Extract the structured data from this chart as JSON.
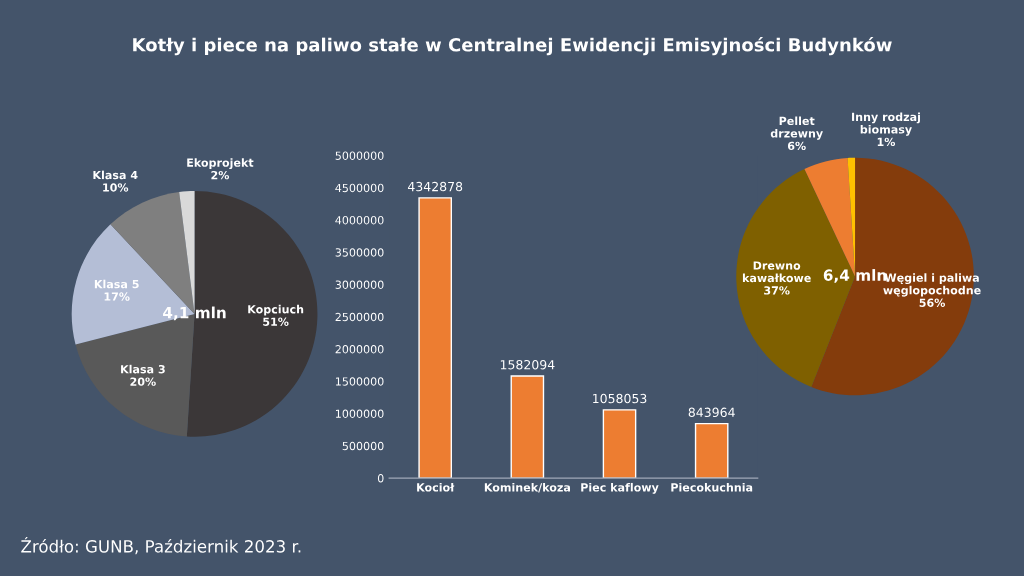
{
  "chart_data": [
    {
      "type": "pie",
      "title": "Kotły i piece na paliwo stałe w Centralnej Ewidencji Emisyjności Budynków",
      "categories": [
        "Kopciuch",
        "Klasa 3",
        "Klasa 5",
        "Klasa 4",
        "Ekoprojekt"
      ],
      "values": [
        51,
        20,
        17,
        10,
        2
      ],
      "value_labels": [
        "51%",
        "20%",
        "17%",
        "10%",
        "2%"
      ],
      "colors": [
        "#3b3738",
        "#595959",
        "#b4bed6",
        "#7f7f7f",
        "#d9d9d9"
      ],
      "annotations": [
        "4,1 mln",
        "Źródło: GUNB, Październik 2023 r."
      ],
      "legend": false
    },
    {
      "type": "bar",
      "categories": [
        "Kocioł",
        "Kominek/koza",
        "Piec kaflowy",
        "Piecokuchnia"
      ],
      "values": [
        4342878,
        1582094,
        1058053,
        843964
      ],
      "color": "#ed7d31",
      "ylim": [
        0,
        5000000
      ],
      "yticks": [
        0,
        500000,
        1000000,
        1500000,
        2000000,
        2500000,
        3000000,
        3500000,
        4000000,
        4500000,
        5000000
      ],
      "data_labels": true,
      "grid": false,
      "legend": false
    },
    {
      "type": "pie",
      "categories": [
        "Węgiel i paliwa węglopochodne",
        "Drewno kawałkowe",
        "Pellet drzewny",
        "Inny rodzaj biomasy"
      ],
      "values": [
        56,
        37,
        6,
        1
      ],
      "value_labels": [
        "56%",
        "37%",
        "6%",
        "1%"
      ],
      "colors": [
        "#843c0c",
        "#7f6000",
        "#ed7d31",
        "#ffc000"
      ],
      "annotations": [
        "6,4 mln"
      ],
      "legend": false
    }
  ]
}
